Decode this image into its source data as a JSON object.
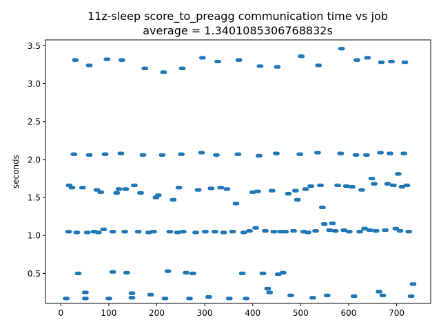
{
  "chart_data": {
    "type": "scatter",
    "title": "11z-sleep score_to_preagg communication time vs job",
    "subtitle": "average = 1.3401085306768832s",
    "xlabel": "",
    "ylabel": "seconds",
    "xlim": [
      -32,
      771
    ],
    "ylim": [
      0.105,
      3.575
    ],
    "x_ticks": [
      0,
      100,
      200,
      300,
      400,
      500,
      600,
      700
    ],
    "y_ticks": [
      0.5,
      1.0,
      1.5,
      2.0,
      2.5,
      3.0,
      3.5
    ],
    "x_tick_labels": [
      "0",
      "100",
      "200",
      "300",
      "400",
      "500",
      "600",
      "700"
    ],
    "y_tick_labels": [
      "0.5",
      "1.0",
      "1.5",
      "2.0",
      "2.5",
      "3.0",
      "3.5"
    ],
    "grid": false,
    "legend": "none",
    "marker_color": "#1f77b4",
    "segments": [
      [
        0,
        8,
        0.17
      ],
      [
        1,
        13,
        1.05
      ],
      [
        2,
        14,
        1.66
      ],
      [
        3,
        20,
        1.63
      ],
      [
        4,
        24,
        2.07
      ],
      [
        5,
        27,
        3.31
      ],
      [
        6,
        30,
        1.04
      ],
      [
        7,
        33,
        0.5
      ],
      [
        8,
        42,
        1.63
      ],
      [
        9,
        48,
        0.25
      ],
      [
        10,
        48,
        0.17
      ],
      [
        11,
        52,
        1.04
      ],
      [
        12,
        56,
        2.06
      ],
      [
        13,
        56,
        3.24
      ],
      [
        14,
        66,
        1.05
      ],
      [
        15,
        72,
        1.6
      ],
      [
        16,
        75,
        1.04
      ],
      [
        17,
        80,
        1.57
      ],
      [
        18,
        86,
        1.08
      ],
      [
        19,
        89,
        2.07
      ],
      [
        20,
        93,
        3.32
      ],
      [
        21,
        97,
        0.17
      ],
      [
        22,
        105,
        0.52
      ],
      [
        23,
        105,
        1.05
      ],
      [
        24,
        113,
        1.56
      ],
      [
        25,
        118,
        1.61
      ],
      [
        26,
        122,
        2.08
      ],
      [
        27,
        124,
        3.31
      ],
      [
        28,
        130,
        1.05
      ],
      [
        29,
        132,
        1.61
      ],
      [
        30,
        134,
        0.51
      ],
      [
        31,
        145,
        0.24
      ],
      [
        32,
        145,
        0.18
      ],
      [
        33,
        150,
        1.66
      ],
      [
        34,
        158,
        1.05
      ],
      [
        35,
        163,
        1.56
      ],
      [
        36,
        168,
        2.06
      ],
      [
        37,
        172,
        3.2
      ],
      [
        38,
        180,
        1.04
      ],
      [
        39,
        184,
        0.22
      ],
      [
        40,
        190,
        1.05
      ],
      [
        41,
        195,
        1.5
      ],
      [
        42,
        200,
        1.53
      ],
      [
        43,
        208,
        2.06
      ],
      [
        44,
        211,
        3.15
      ],
      [
        45,
        214,
        0.17
      ],
      [
        46,
        220,
        0.53
      ],
      [
        47,
        224,
        1.05
      ],
      [
        48,
        231,
        1.47
      ],
      [
        49,
        240,
        1.04
      ],
      [
        50,
        243,
        1.63
      ],
      [
        51,
        248,
        2.07
      ],
      [
        52,
        250,
        3.2
      ],
      [
        53,
        252,
        1.05
      ],
      [
        54,
        258,
        0.51
      ],
      [
        55,
        265,
        0.17
      ],
      [
        56,
        272,
        0.5
      ],
      [
        57,
        278,
        1.04
      ],
      [
        58,
        283,
        1.6
      ],
      [
        59,
        290,
        2.09
      ],
      [
        60,
        292,
        3.34
      ],
      [
        61,
        298,
        1.05
      ],
      [
        62,
        305,
        0.19
      ],
      [
        63,
        310,
        1.62
      ],
      [
        64,
        318,
        1.05
      ],
      [
        65,
        321,
        2.06
      ],
      [
        66,
        324,
        3.29
      ],
      [
        67,
        330,
        1.63
      ],
      [
        68,
        336,
        1.04
      ],
      [
        69,
        343,
        1.61
      ],
      [
        70,
        348,
        0.17
      ],
      [
        71,
        355,
        1.05
      ],
      [
        72,
        362,
        1.42
      ],
      [
        73,
        366,
        2.07
      ],
      [
        74,
        368,
        3.31
      ],
      [
        75,
        375,
        0.5
      ],
      [
        76,
        378,
        1.04
      ],
      [
        77,
        383,
        0.17
      ],
      [
        78,
        390,
        1.06
      ],
      [
        79,
        397,
        1.57
      ],
      [
        80,
        403,
        1.1
      ],
      [
        81,
        407,
        1.58
      ],
      [
        82,
        410,
        2.05
      ],
      [
        83,
        412,
        3.23
      ],
      [
        84,
        418,
        0.5
      ],
      [
        85,
        423,
        1.06
      ],
      [
        86,
        428,
        0.3
      ],
      [
        87,
        432,
        0.25
      ],
      [
        88,
        437,
        1.59
      ],
      [
        89,
        441,
        1.05
      ],
      [
        90,
        446,
        2.08
      ],
      [
        91,
        448,
        3.22
      ],
      [
        92,
        450,
        0.49
      ],
      [
        93,
        455,
        1.05
      ],
      [
        94,
        460,
        0.51
      ],
      [
        95,
        465,
        1.05
      ],
      [
        96,
        471,
        1.55
      ],
      [
        97,
        476,
        0.21
      ],
      [
        98,
        482,
        1.06
      ],
      [
        99,
        486,
        1.59
      ],
      [
        100,
        490,
        1.47
      ],
      [
        101,
        495,
        2.07
      ],
      [
        102,
        498,
        3.36
      ],
      [
        103,
        503,
        1.05
      ],
      [
        104,
        507,
        1.61
      ],
      [
        105,
        512,
        1.04
      ],
      [
        106,
        518,
        1.65
      ],
      [
        107,
        522,
        0.18
      ],
      [
        108,
        528,
        1.06
      ],
      [
        109,
        532,
        2.09
      ],
      [
        110,
        534,
        3.24
      ],
      [
        111,
        538,
        1.66
      ],
      [
        112,
        542,
        1.37
      ],
      [
        113,
        546,
        1.15
      ],
      [
        114,
        552,
        0.21
      ],
      [
        115,
        557,
        1.07
      ],
      [
        116,
        563,
        1.16
      ],
      [
        117,
        569,
        1.06
      ],
      [
        118,
        574,
        1.66
      ],
      [
        119,
        580,
        2.08
      ],
      [
        120,
        582,
        3.46
      ],
      [
        121,
        587,
        1.07
      ],
      [
        122,
        592,
        1.65
      ],
      [
        123,
        598,
        1.05
      ],
      [
        124,
        604,
        1.64
      ],
      [
        125,
        608,
        0.2
      ],
      [
        126,
        612,
        2.06
      ],
      [
        127,
        614,
        3.31
      ],
      [
        128,
        620,
        1.05
      ],
      [
        129,
        624,
        1.6
      ],
      [
        130,
        630,
        1.09
      ],
      [
        131,
        634,
        2.06
      ],
      [
        132,
        636,
        3.34
      ],
      [
        133,
        641,
        1.07
      ],
      [
        134,
        645,
        1.75
      ],
      [
        135,
        650,
        1.68
      ],
      [
        136,
        654,
        1.06
      ],
      [
        137,
        660,
        0.26
      ],
      [
        138,
        663,
        2.09
      ],
      [
        139,
        665,
        3.28
      ],
      [
        140,
        668,
        0.21
      ],
      [
        141,
        673,
        1.07
      ],
      [
        142,
        678,
        1.68
      ],
      [
        143,
        683,
        2.08
      ],
      [
        144,
        686,
        3.29
      ],
      [
        145,
        690,
        1.66
      ],
      [
        146,
        695,
        1.09
      ],
      [
        147,
        700,
        1.81
      ],
      [
        148,
        704,
        1.06
      ],
      [
        149,
        708,
        1.64
      ],
      [
        150,
        712,
        2.08
      ],
      [
        151,
        714,
        3.28
      ],
      [
        152,
        718,
        1.66
      ],
      [
        153,
        722,
        1.05
      ],
      [
        154,
        727,
        0.2
      ],
      [
        155,
        731,
        0.36
      ]
    ]
  }
}
